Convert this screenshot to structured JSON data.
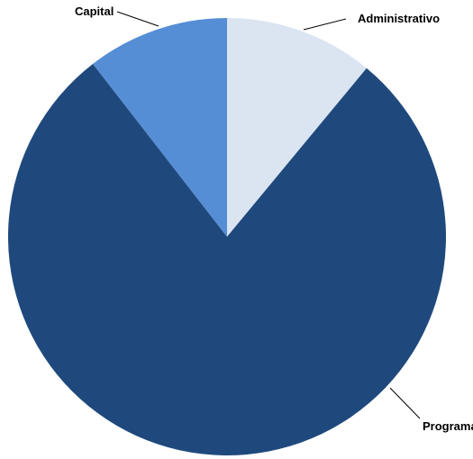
{
  "chart_data": {
    "type": "pie",
    "categories": [
      "Administrativo",
      "Programa",
      "Capital"
    ],
    "values": [
      11,
      78.5,
      10.5
    ],
    "value_unit": "percent (estimated)",
    "colors": [
      "#dbe5f1",
      "#1f497d",
      "#558ed5"
    ],
    "start_angle_deg": 0,
    "direction": "clockwise",
    "legend": "none",
    "labels": {
      "Administrativo": "Administrativo",
      "Programa": "Programa",
      "Capital": "Capital"
    }
  }
}
